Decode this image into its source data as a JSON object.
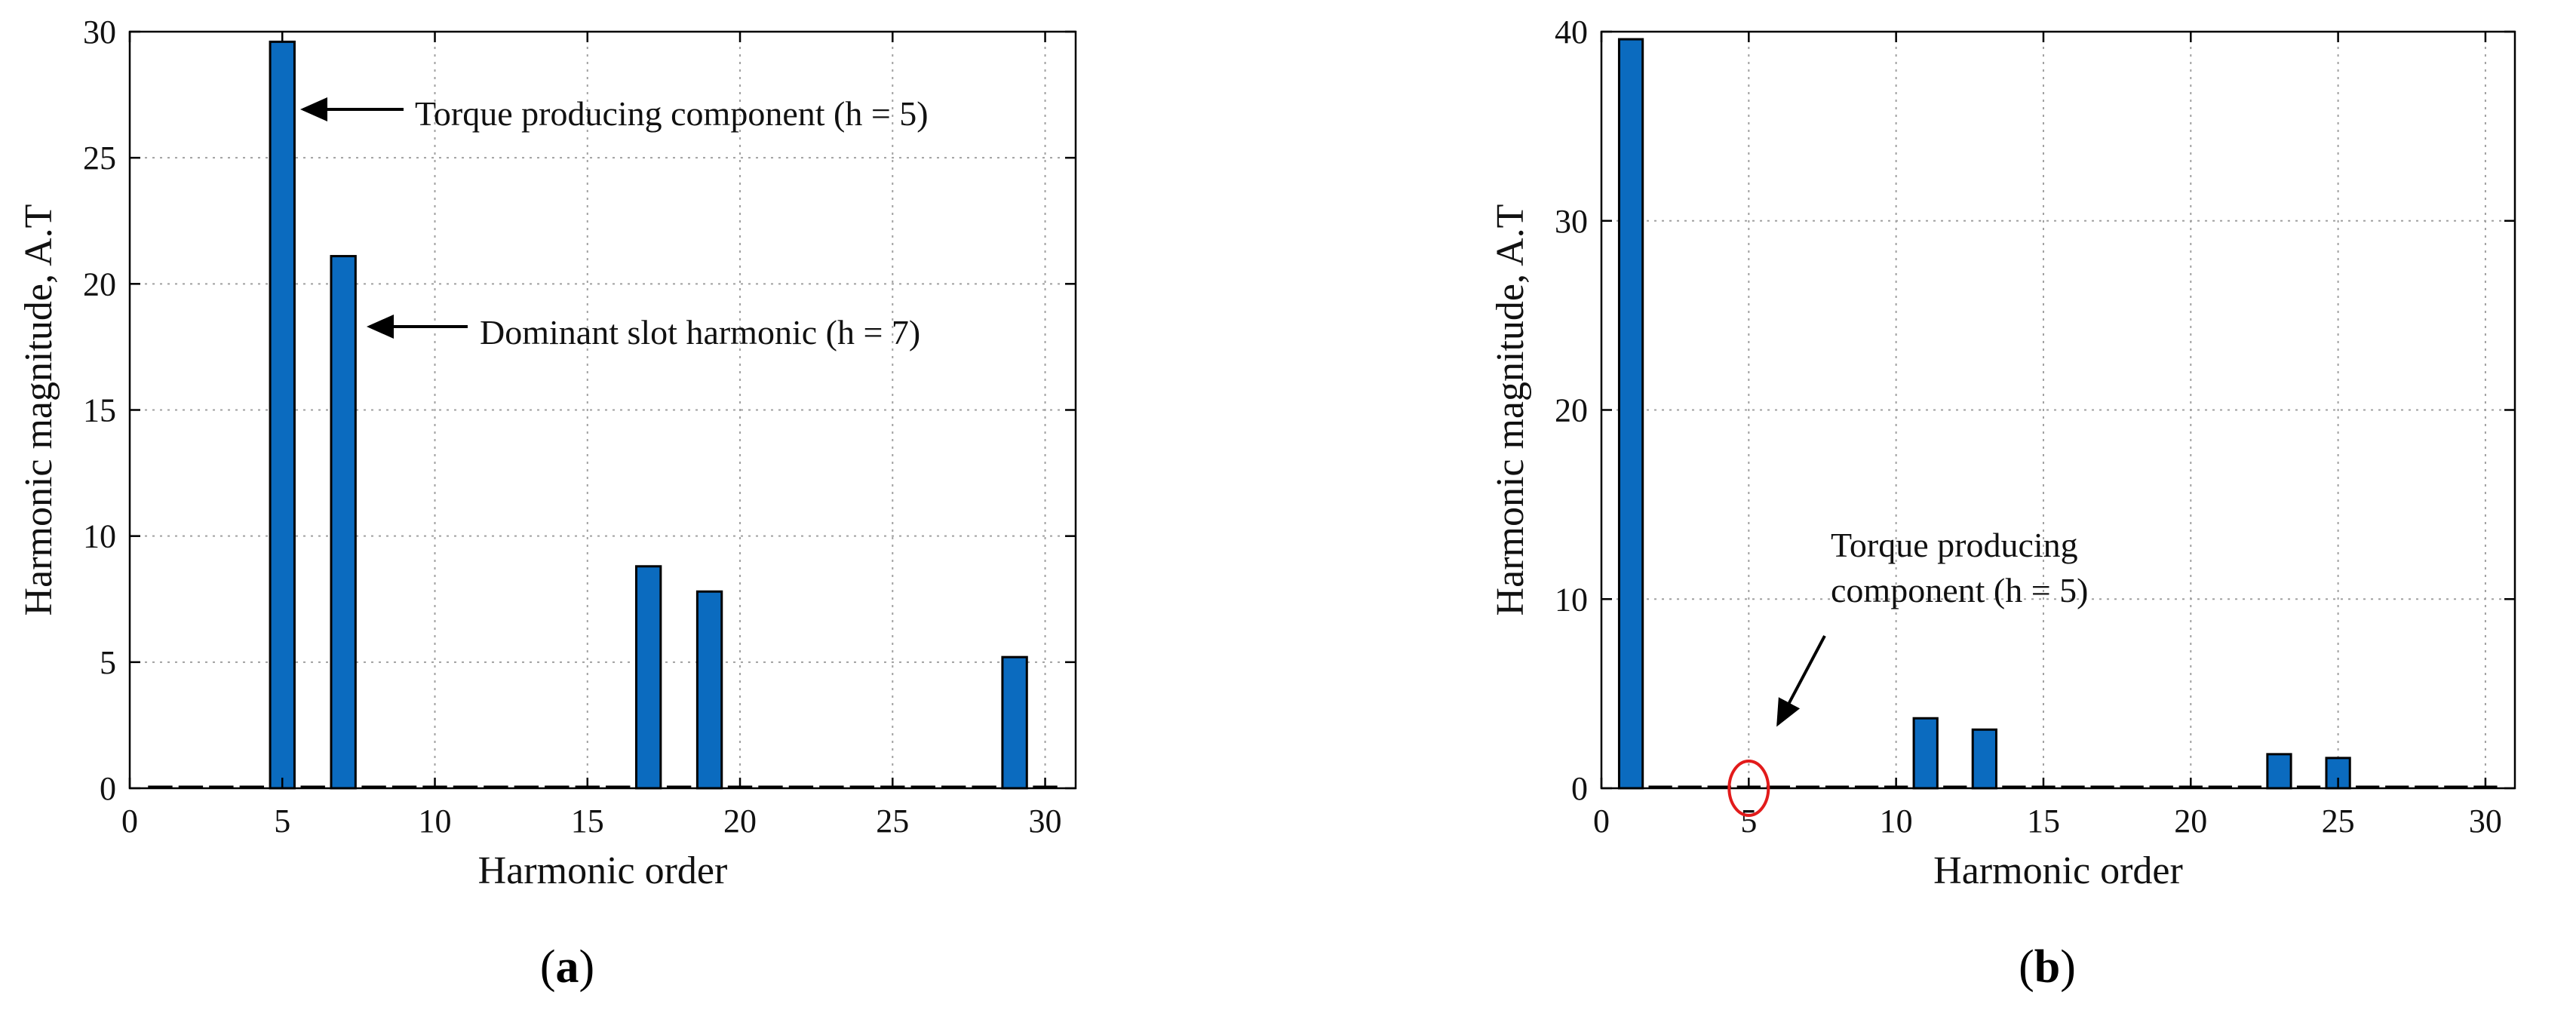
{
  "colors": {
    "bar_fill": "#0b6bbf",
    "bar_stroke": "#000000",
    "grid": "#a0a0a0",
    "axis": "#000000",
    "marker_circle": "#e21b1b"
  },
  "chart_data": [
    {
      "type": "bar",
      "panel_label": "a",
      "xlabel": "Harmonic order",
      "ylabel": "Harmonic magnitude, A.T",
      "xlim": [
        0,
        31
      ],
      "ylim": [
        0,
        30
      ],
      "xticks": [
        0,
        5,
        10,
        15,
        20,
        25,
        30
      ],
      "yticks": [
        0,
        5,
        10,
        15,
        20,
        25,
        30
      ],
      "grid": true,
      "x": [
        1,
        2,
        3,
        4,
        5,
        6,
        7,
        8,
        9,
        10,
        11,
        12,
        13,
        14,
        15,
        16,
        17,
        18,
        19,
        20,
        21,
        22,
        23,
        24,
        25,
        26,
        27,
        28,
        29,
        30
      ],
      "values": [
        0,
        0,
        0,
        0,
        29.6,
        0,
        21.1,
        0,
        0,
        0,
        0,
        0,
        0,
        0,
        0,
        0,
        8.8,
        0,
        7.8,
        0,
        0,
        0,
        0,
        0,
        0,
        0,
        0,
        0,
        5.2,
        0
      ],
      "annotations": [
        {
          "text": "Torque producing component (h = 5)",
          "target_x": 5,
          "target_y": 29.6
        },
        {
          "text": "Dominant slot harmonic (h = 7)",
          "target_x": 7,
          "target_y": 18.6
        }
      ]
    },
    {
      "type": "bar",
      "panel_label": "b",
      "xlabel": "Harmonic order",
      "ylabel": "Harmonic magnitude, A.T",
      "xlim": [
        0,
        31
      ],
      "ylim": [
        0,
        40
      ],
      "xticks": [
        0,
        5,
        10,
        15,
        20,
        25,
        30
      ],
      "yticks": [
        0,
        10,
        20,
        30,
        40
      ],
      "grid": true,
      "x": [
        1,
        2,
        3,
        4,
        5,
        6,
        7,
        8,
        9,
        10,
        11,
        12,
        13,
        14,
        15,
        16,
        17,
        18,
        19,
        20,
        21,
        22,
        23,
        24,
        25,
        26,
        27,
        28,
        29,
        30
      ],
      "values": [
        39.6,
        0,
        0,
        0,
        0,
        0,
        0,
        0,
        0,
        0,
        3.7,
        0,
        3.1,
        0,
        0,
        0,
        0,
        0,
        0,
        0,
        0,
        0,
        1.8,
        0,
        1.6,
        0,
        0,
        0,
        0,
        0
      ],
      "annotations": [
        {
          "text_lines": [
            "Torque producing",
            "component (h = 5)"
          ],
          "target_x": 5,
          "target_y": 0
        }
      ]
    }
  ]
}
